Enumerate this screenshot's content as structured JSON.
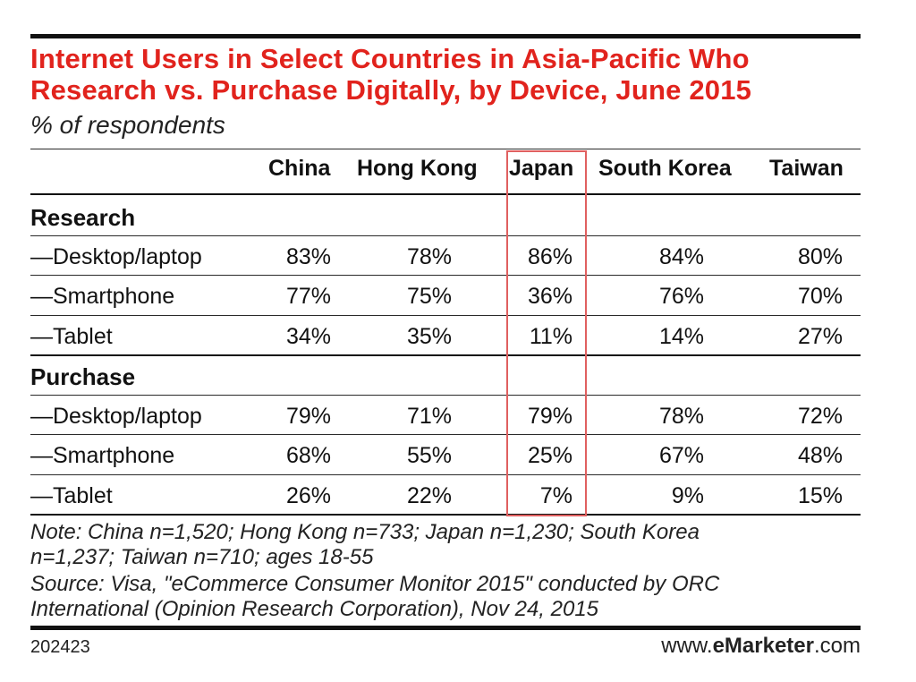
{
  "title_line1": "Internet Users in Select Countries in Asia-Pacific Who",
  "title_line2": "Research vs. Purchase Digitally, by Device, June 2015",
  "subtitle": "% of respondents",
  "accent_color": "#e1231d",
  "highlight_color": "#e06060",
  "highlighted_column": "Japan",
  "chart_data": {
    "type": "table",
    "title": "Internet Users in Select Countries in Asia-Pacific Who Research vs. Purchase Digitally, by Device, June 2015",
    "subtitle": "% of respondents",
    "columns": [
      "China",
      "Hong Kong",
      "Japan",
      "South Korea",
      "Taiwan"
    ],
    "sections": [
      {
        "name": "Research",
        "rows": [
          {
            "label": "—Desktop/laptop",
            "values": [
              "83%",
              "78%",
              "86%",
              "84%",
              "80%"
            ]
          },
          {
            "label": "—Smartphone",
            "values": [
              "77%",
              "75%",
              "36%",
              "76%",
              "70%"
            ]
          },
          {
            "label": "—Tablet",
            "values": [
              "34%",
              "35%",
              "11%",
              "14%",
              "27%"
            ]
          }
        ]
      },
      {
        "name": "Purchase",
        "rows": [
          {
            "label": "—Desktop/laptop",
            "values": [
              "79%",
              "71%",
              "79%",
              "78%",
              "72%"
            ]
          },
          {
            "label": "—Smartphone",
            "values": [
              "68%",
              "55%",
              "25%",
              "67%",
              "48%"
            ]
          },
          {
            "label": "—Tablet",
            "values": [
              "26%",
              "22%",
              "7%",
              "9%",
              "15%"
            ]
          }
        ]
      }
    ]
  },
  "note_line1": "Note: China n=1,520; Hong Kong n=733; Japan n=1,230; South Korea",
  "note_line2": "n=1,237; Taiwan n=710; ages 18-55",
  "source_line1": "Source: Visa, \"eCommerce Consumer Monitor 2015\" conducted by ORC",
  "source_line2": "International (Opinion Research Corporation), Nov 24, 2015",
  "chart_id": "202423",
  "brand": {
    "prefix": "www.",
    "name": "eMarketer",
    "suffix": ".com"
  }
}
